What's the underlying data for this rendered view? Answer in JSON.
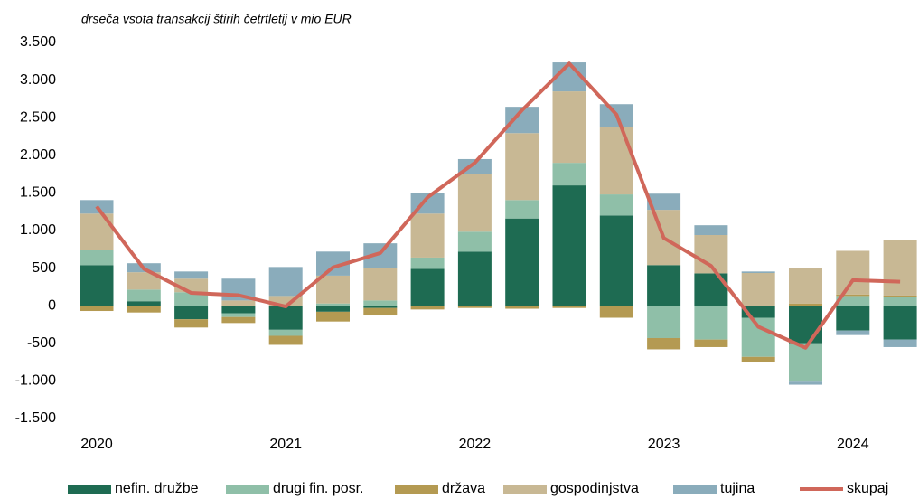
{
  "chart_data": {
    "type": "bar",
    "stacked": true,
    "subtitle": "drseča vsota transakcij štirih četrtletij v mio EUR",
    "categories": [
      "2020",
      null,
      null,
      null,
      "2021",
      null,
      null,
      null,
      "2022",
      null,
      null,
      null,
      "2023",
      null,
      null,
      null,
      "2024",
      null
    ],
    "ylim": [
      -1500,
      3500
    ],
    "yticks": [
      {
        "value": -1500,
        "label": "-1.500"
      },
      {
        "value": -1000,
        "label": "-1.000"
      },
      -500,
      0,
      500,
      {
        "value": 1000,
        "label": "1.000"
      },
      {
        "value": 1500,
        "label": "1.500"
      },
      {
        "value": 2000,
        "label": "2.000"
      },
      {
        "value": 2500,
        "label": "2.500"
      },
      {
        "value": 3000,
        "label": "3.000"
      },
      {
        "value": 3500,
        "label": "3.500"
      }
    ],
    "series": [
      {
        "name": "nefin. družbe",
        "color": "#1e6b52",
        "values": [
          540,
          60,
          -180,
          -100,
          -320,
          -80,
          -30,
          490,
          720,
          1160,
          1600,
          1200,
          540,
          430,
          -160,
          -500,
          -330,
          -450
        ]
      },
      {
        "name": "drugi fin. posr.",
        "color": "#8fbfa8",
        "values": [
          205,
          155,
          180,
          -50,
          -80,
          30,
          70,
          150,
          265,
          245,
          300,
          280,
          -430,
          -450,
          -520,
          -510,
          130,
          120
        ]
      },
      {
        "name": "država",
        "color": "#b49a52",
        "values": [
          -70,
          -90,
          -110,
          -80,
          -120,
          -130,
          -100,
          -50,
          -30,
          -40,
          -30,
          -160,
          -150,
          -100,
          -70,
          30,
          20,
          15
        ]
      },
      {
        "name": "gospodinjstva",
        "color": "#c8b894",
        "values": [
          480,
          230,
          180,
          70,
          130,
          370,
          435,
          585,
          770,
          890,
          950,
          890,
          735,
          510,
          435,
          465,
          580,
          740
        ]
      },
      {
        "name": "tujina",
        "color": "#8aacbb",
        "values": [
          180,
          120,
          95,
          290,
          385,
          320,
          325,
          275,
          195,
          350,
          385,
          310,
          215,
          130,
          20,
          -40,
          -60,
          -100
        ]
      },
      {
        "name": "skupaj",
        "type": "line",
        "color": "#d0675a",
        "values": [
          1320,
          490,
          170,
          140,
          -10,
          510,
          700,
          1440,
          1900,
          2600,
          3220,
          2540,
          900,
          530,
          -280,
          -560,
          340,
          320
        ]
      }
    ]
  }
}
